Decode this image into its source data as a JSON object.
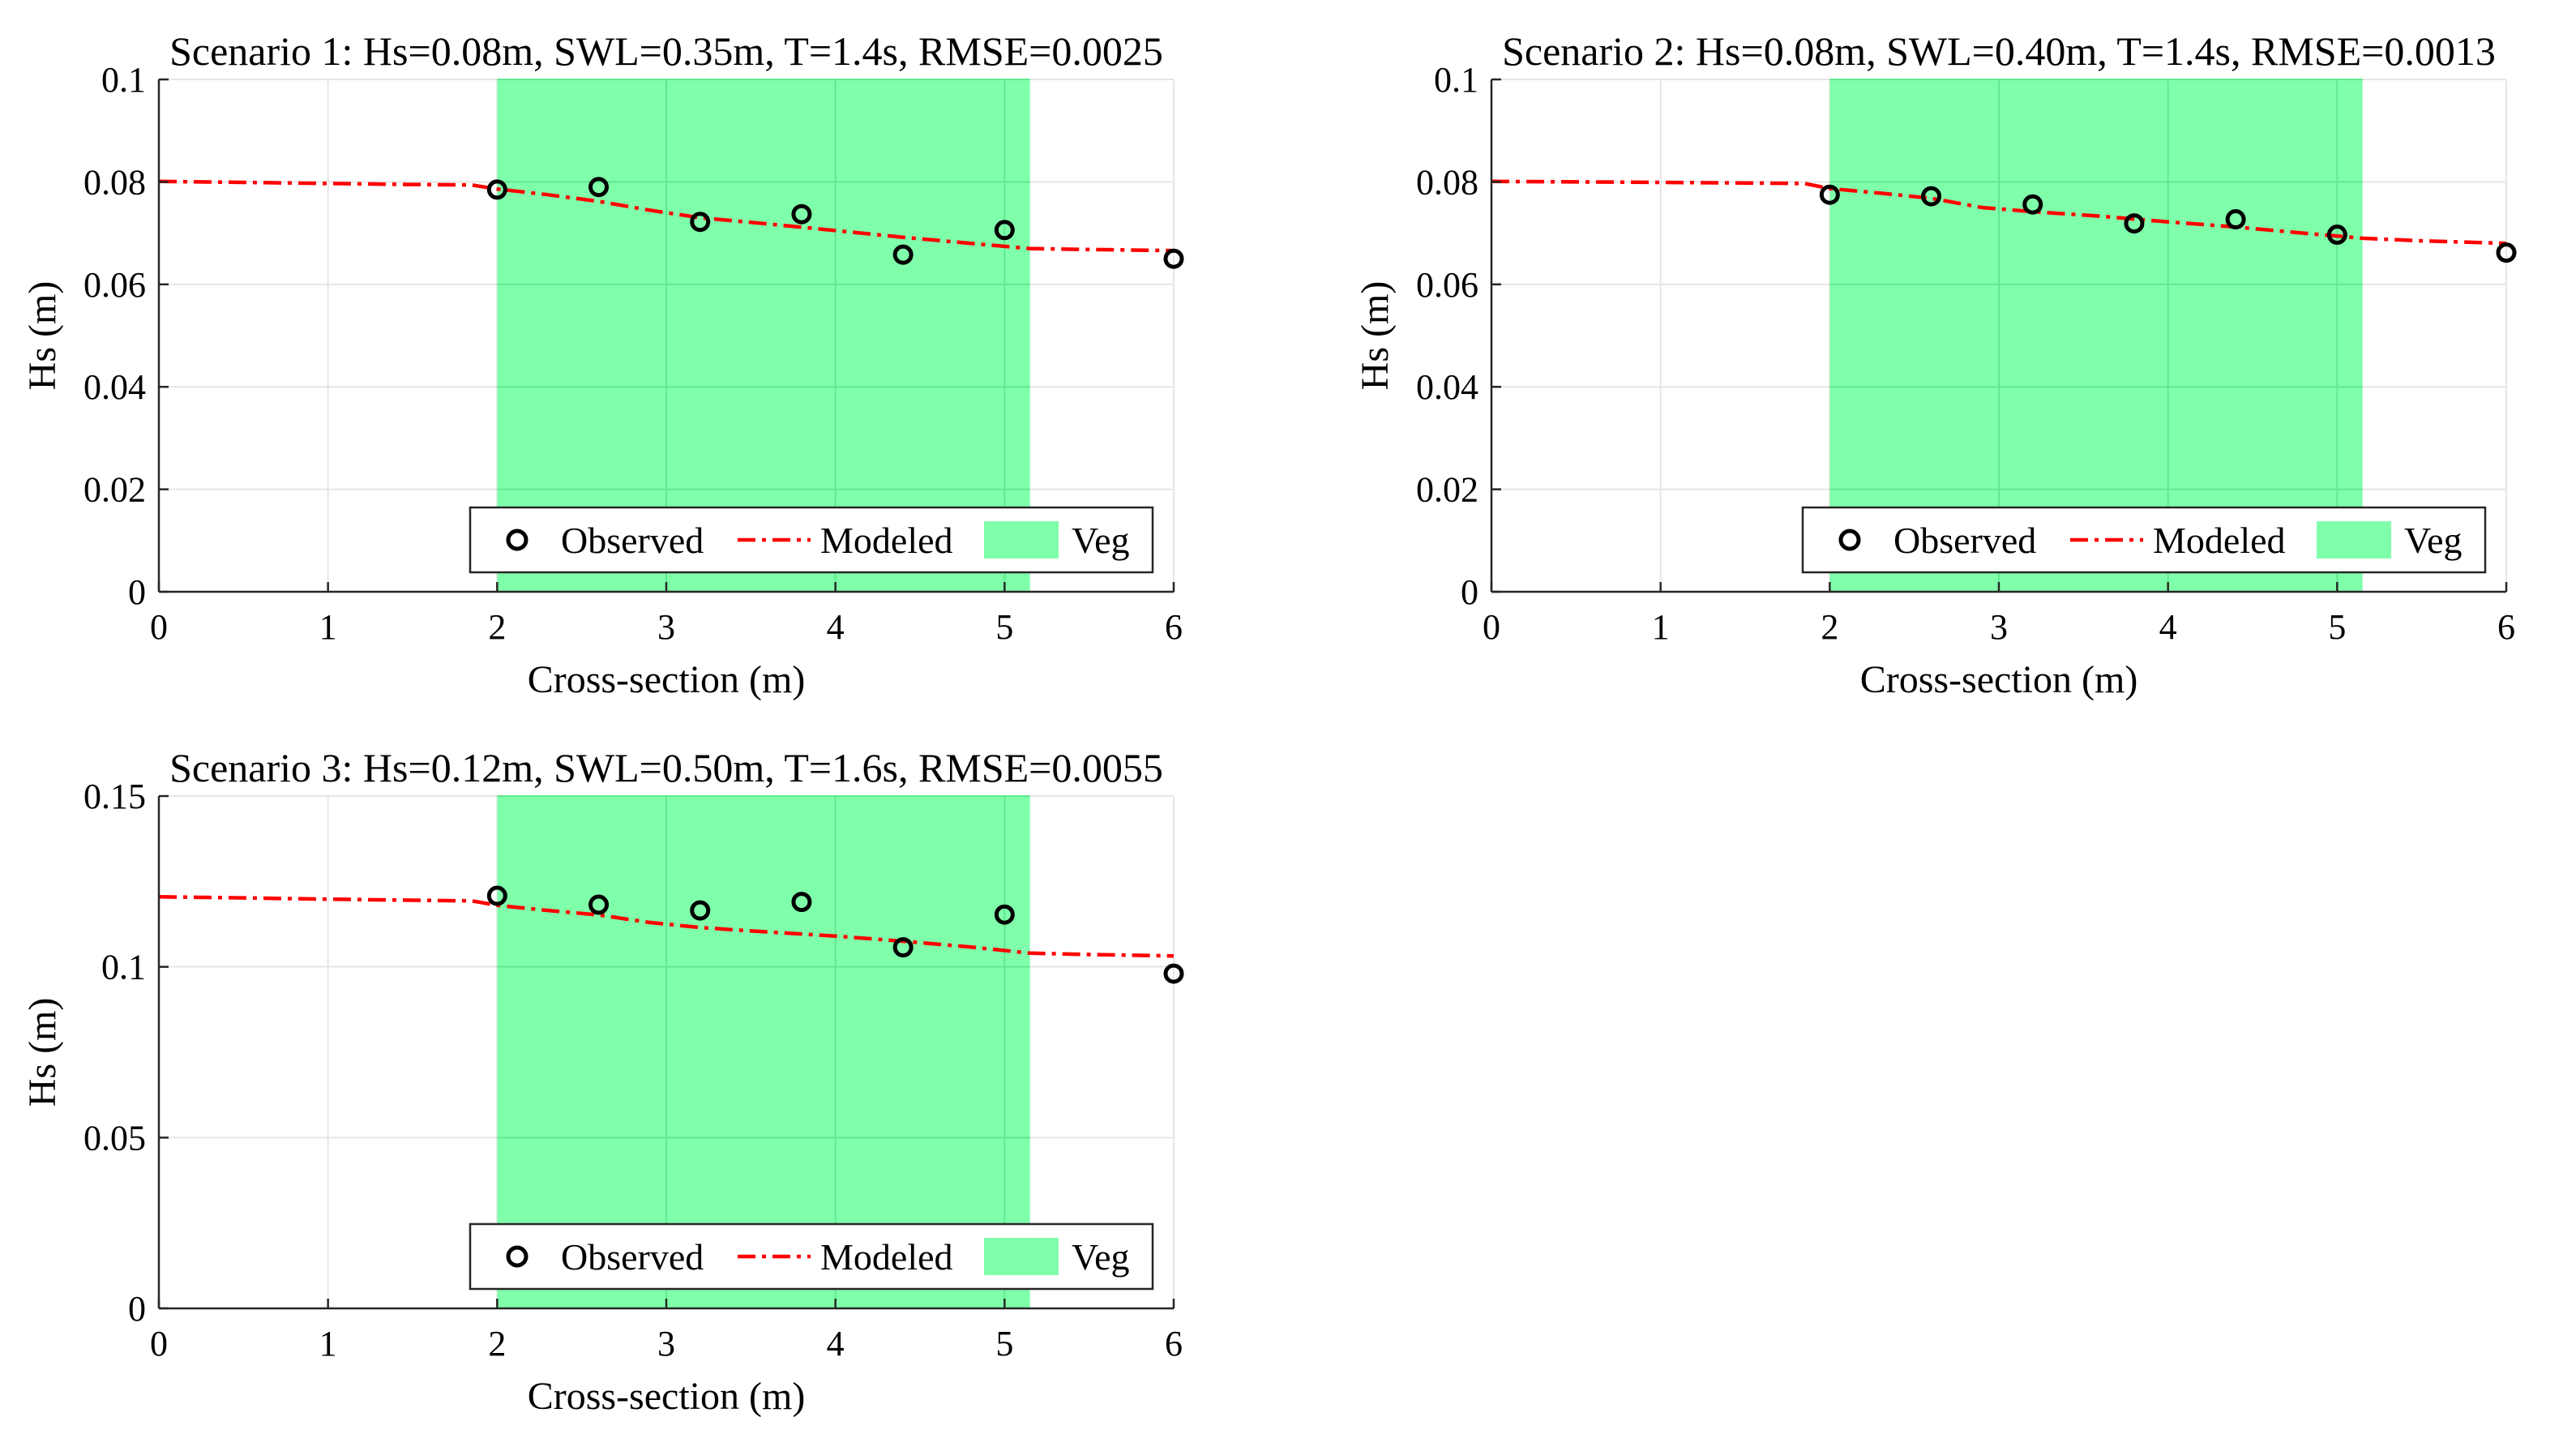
{
  "figure": {
    "legend_labels": {
      "observed": "Observed",
      "modeled": "Modeled",
      "veg": "Veg"
    }
  },
  "colors": {
    "veg_fill": "#80ffab",
    "veg_edge": "#5fe88f",
    "model_line": "#ff0000",
    "observed_marker": "#000000",
    "grid": "#e6e6e6",
    "axis": "#262626"
  },
  "chart_data": [
    {
      "type": "line",
      "title": "Scenario 1: Hs=0.08m, SWL=0.35m, T=1.4s, RMSE=0.0025",
      "xlabel": "Cross-section (m)",
      "ylabel": "Hs (m)",
      "xlim": [
        0,
        6
      ],
      "ylim": [
        0,
        0.1
      ],
      "xticks": [
        0,
        1,
        2,
        3,
        4,
        5,
        6
      ],
      "xtick_labels": [
        "0",
        "1",
        "2",
        "3",
        "4",
        "5",
        "6"
      ],
      "yticks": [
        0,
        0.02,
        0.04,
        0.06,
        0.08,
        0.1
      ],
      "ytick_labels": [
        "0",
        "0.02",
        "0.04",
        "0.06",
        "0.08",
        "0.1"
      ],
      "grid": true,
      "legend_position": "bottom-right",
      "veg_region": [
        2.0,
        5.15
      ],
      "series": [
        {
          "name": "Modeled",
          "style": "dash-dot",
          "x": [
            0,
            0.5,
            1.0,
            1.5,
            1.85,
            2.0,
            2.3,
            2.6,
            2.9,
            3.2,
            3.6,
            4.0,
            4.4,
            4.8,
            5.15,
            5.5,
            6.0
          ],
          "y": [
            0.0801,
            0.0799,
            0.0797,
            0.0795,
            0.0794,
            0.0786,
            0.0775,
            0.0762,
            0.0745,
            0.073,
            0.0718,
            0.0705,
            0.0692,
            0.068,
            0.067,
            0.0668,
            0.0666
          ]
        },
        {
          "name": "Observed",
          "style": "circle",
          "x": [
            2.0,
            2.6,
            3.2,
            3.8,
            4.4,
            5.0,
            6.0
          ],
          "y": [
            0.0785,
            0.079,
            0.0722,
            0.0737,
            0.0658,
            0.0706,
            0.065
          ]
        }
      ]
    },
    {
      "type": "line",
      "title": "Scenario 2: Hs=0.08m, SWL=0.40m, T=1.4s, RMSE=0.0013",
      "xlabel": "Cross-section (m)",
      "ylabel": "Hs (m)",
      "xlim": [
        0,
        6
      ],
      "ylim": [
        0,
        0.1
      ],
      "xticks": [
        0,
        1,
        2,
        3,
        4,
        5,
        6
      ],
      "xtick_labels": [
        "0",
        "1",
        "2",
        "3",
        "4",
        "5",
        "6"
      ],
      "yticks": [
        0,
        0.02,
        0.04,
        0.06,
        0.08,
        0.1
      ],
      "ytick_labels": [
        "0",
        "0.02",
        "0.04",
        "0.06",
        "0.08",
        "0.1"
      ],
      "grid": true,
      "legend_position": "bottom-right",
      "veg_region": [
        2.0,
        5.15
      ],
      "series": [
        {
          "name": "Modeled",
          "style": "dash-dot",
          "x": [
            0,
            0.5,
            1.0,
            1.5,
            1.85,
            2.0,
            2.3,
            2.6,
            2.9,
            3.2,
            3.6,
            4.0,
            4.4,
            4.8,
            5.15,
            5.5,
            6.0
          ],
          "y": [
            0.0801,
            0.08,
            0.0799,
            0.0798,
            0.0797,
            0.0787,
            0.0778,
            0.0768,
            0.075,
            0.0742,
            0.0733,
            0.0722,
            0.0712,
            0.07,
            0.069,
            0.0685,
            0.068
          ]
        },
        {
          "name": "Observed",
          "style": "circle",
          "x": [
            2.0,
            2.6,
            3.2,
            3.8,
            4.4,
            5.0,
            6.0
          ],
          "y": [
            0.0775,
            0.0772,
            0.0756,
            0.0719,
            0.0727,
            0.0697,
            0.0662
          ]
        }
      ]
    },
    {
      "type": "line",
      "title": "Scenario 3: Hs=0.12m, SWL=0.50m, T=1.6s, RMSE=0.0055",
      "xlabel": "Cross-section (m)",
      "ylabel": "Hs (m)",
      "xlim": [
        0,
        6
      ],
      "ylim": [
        0,
        0.15
      ],
      "xticks": [
        0,
        1,
        2,
        3,
        4,
        5,
        6
      ],
      "xtick_labels": [
        "0",
        "1",
        "2",
        "3",
        "4",
        "5",
        "6"
      ],
      "yticks": [
        0,
        0.05,
        0.1,
        0.15
      ],
      "ytick_labels": [
        "0",
        "0.05",
        "0.1",
        "0.15"
      ],
      "grid": true,
      "legend_position": "bottom-right",
      "veg_region": [
        2.0,
        5.15
      ],
      "series": [
        {
          "name": "Modeled",
          "style": "dash-dot",
          "x": [
            0,
            0.5,
            1.0,
            1.5,
            1.85,
            2.0,
            2.3,
            2.6,
            2.9,
            3.2,
            3.6,
            4.0,
            4.4,
            4.8,
            5.15,
            5.5,
            6.0
          ],
          "y": [
            0.1205,
            0.1202,
            0.1198,
            0.1195,
            0.1193,
            0.118,
            0.1165,
            0.1152,
            0.113,
            0.1115,
            0.1102,
            0.109,
            0.1075,
            0.1058,
            0.104,
            0.1036,
            0.1032
          ]
        },
        {
          "name": "Observed",
          "style": "circle",
          "x": [
            2.0,
            2.6,
            3.2,
            3.8,
            4.4,
            5.0,
            6.0
          ],
          "y": [
            0.1208,
            0.1182,
            0.1165,
            0.119,
            0.1057,
            0.1153,
            0.098
          ]
        }
      ]
    }
  ]
}
